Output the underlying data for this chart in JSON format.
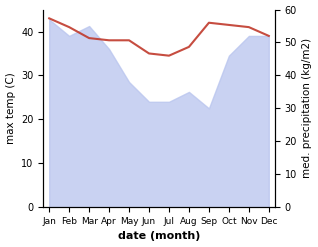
{
  "months": [
    "Jan",
    "Feb",
    "Mar",
    "Apr",
    "May",
    "Jun",
    "Jul",
    "Aug",
    "Sep",
    "Oct",
    "Nov",
    "Dec"
  ],
  "month_indices": [
    0,
    1,
    2,
    3,
    4,
    5,
    6,
    7,
    8,
    9,
    10,
    11
  ],
  "temp_max": [
    43,
    41,
    38.5,
    38,
    38,
    35,
    34.5,
    36.5,
    42,
    41.5,
    41,
    39
  ],
  "precipitation": [
    57,
    52,
    55,
    48,
    38,
    32,
    32,
    35,
    30,
    46,
    52,
    52
  ],
  "temp_ylim": [
    0,
    45
  ],
  "precip_ylim": [
    0,
    60
  ],
  "temp_yticks": [
    0,
    10,
    20,
    30,
    40
  ],
  "precip_yticks": [
    0,
    10,
    20,
    30,
    40,
    50,
    60
  ],
  "temp_color": "#c0392b",
  "precip_fill_color": "#b8c4ee",
  "precip_fill_alpha": 0.75,
  "xlabel": "date (month)",
  "ylabel_left": "max temp (C)",
  "ylabel_right": "med. precipitation (kg/m2)",
  "background_color": "#ffffff"
}
